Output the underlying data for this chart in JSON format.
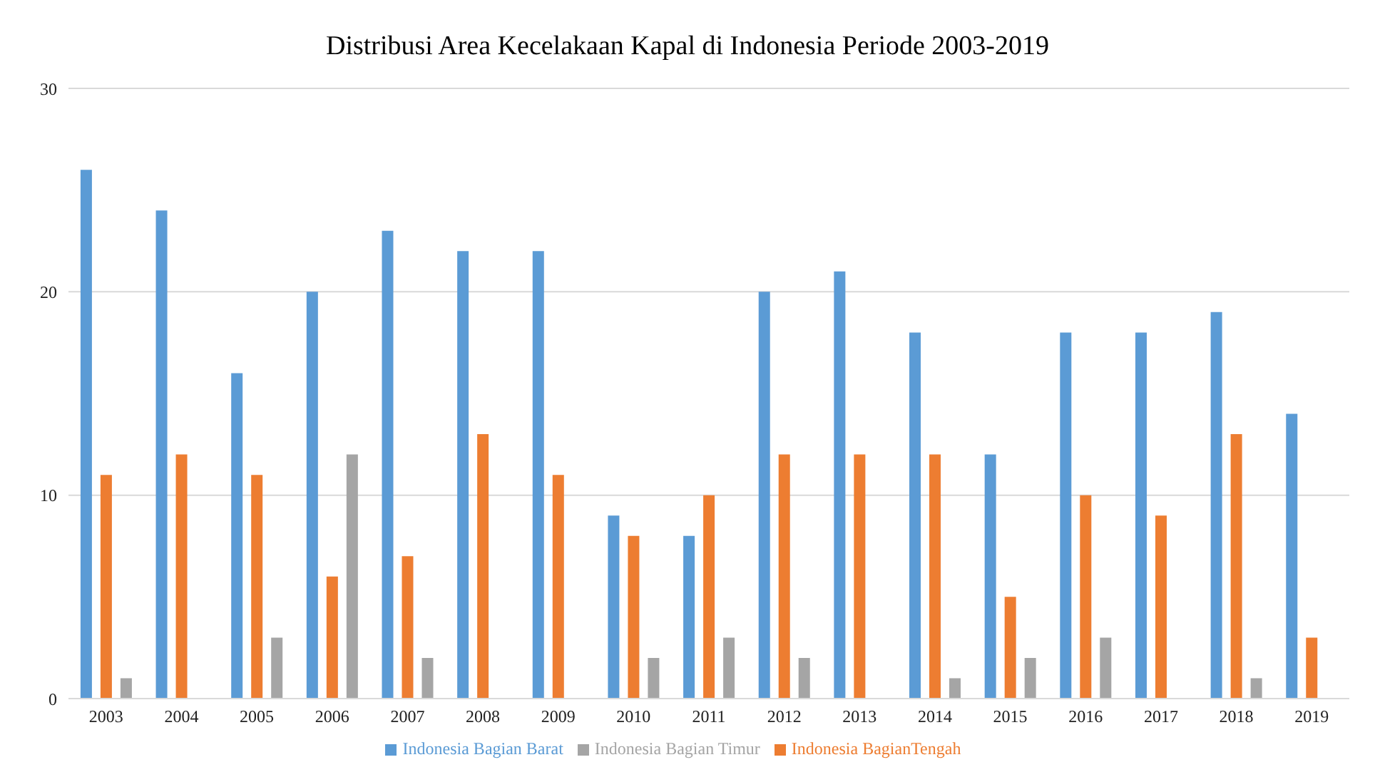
{
  "chart_data": {
    "type": "bar",
    "title": "Distribusi Area Kecelakaan Kapal di Indonesia Periode 2003-2019",
    "categories": [
      "2003",
      "2004",
      "2005",
      "2006",
      "2007",
      "2008",
      "2009",
      "2010",
      "2011",
      "2012",
      "2013",
      "2014",
      "2015",
      "2016",
      "2017",
      "2018",
      "2019"
    ],
    "series": [
      {
        "name": "Indonesia Bagian Barat",
        "color": "#5b9bd5",
        "values": [
          26,
          24,
          16,
          20,
          23,
          22,
          22,
          9,
          8,
          20,
          21,
          18,
          12,
          18,
          18,
          19,
          14
        ]
      },
      {
        "name": "Indonesia BagianTengah",
        "color": "#ed7d31",
        "values": [
          11,
          12,
          11,
          6,
          7,
          13,
          11,
          8,
          10,
          12,
          12,
          12,
          5,
          10,
          9,
          13,
          3
        ]
      },
      {
        "name": "Indonesia Bagian Timur",
        "color": "#a5a5a5",
        "values": [
          1,
          0,
          3,
          12,
          2,
          0,
          0,
          2,
          3,
          2,
          0,
          1,
          2,
          3,
          0,
          1,
          0
        ]
      }
    ],
    "ylim": [
      0,
      30
    ],
    "yticks": [
      0,
      10,
      20,
      30
    ],
    "grid": "y",
    "legend": "bottom"
  }
}
